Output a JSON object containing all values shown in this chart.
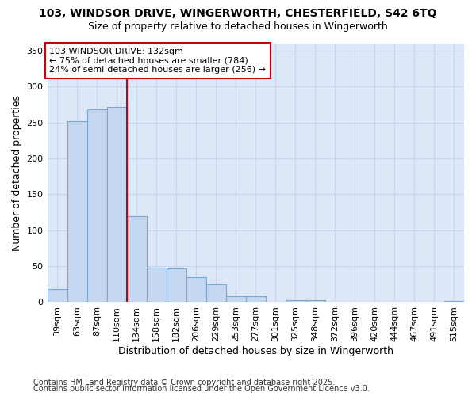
{
  "title_line1": "103, WINDSOR DRIVE, WINGERWORTH, CHESTERFIELD, S42 6TQ",
  "title_line2": "Size of property relative to detached houses in Wingerworth",
  "xlabel": "Distribution of detached houses by size in Wingerworth",
  "ylabel": "Number of detached properties",
  "categories": [
    "39sqm",
    "63sqm",
    "87sqm",
    "110sqm",
    "134sqm",
    "158sqm",
    "182sqm",
    "206sqm",
    "229sqm",
    "253sqm",
    "277sqm",
    "301sqm",
    "325sqm",
    "348sqm",
    "372sqm",
    "396sqm",
    "420sqm",
    "444sqm",
    "467sqm",
    "491sqm",
    "515sqm"
  ],
  "values": [
    18,
    252,
    268,
    272,
    120,
    48,
    47,
    35,
    25,
    8,
    8,
    0,
    3,
    3,
    0,
    0,
    0,
    0,
    0,
    0,
    2
  ],
  "bar_color": "#c5d8ef",
  "bar_edgecolor": "#7aa6d4",
  "vline_color": "#cc0000",
  "annotation_text": "103 WINDSOR DRIVE: 132sqm\n← 75% of detached houses are smaller (784)\n24% of semi-detached houses are larger (256) →",
  "annotation_box_color": "#ffffff",
  "annotation_box_edgecolor": "#cc0000",
  "ylim": [
    0,
    360
  ],
  "yticks": [
    0,
    50,
    100,
    150,
    200,
    250,
    300,
    350
  ],
  "grid_color": "#c8d4e8",
  "background_color": "#dce8f8",
  "footer_line1": "Contains HM Land Registry data © Crown copyright and database right 2025.",
  "footer_line2": "Contains public sector information licensed under the Open Government Licence v3.0.",
  "title_fontsize": 10,
  "subtitle_fontsize": 9,
  "axis_label_fontsize": 9,
  "tick_fontsize": 8,
  "annotation_fontsize": 8,
  "footer_fontsize": 7
}
